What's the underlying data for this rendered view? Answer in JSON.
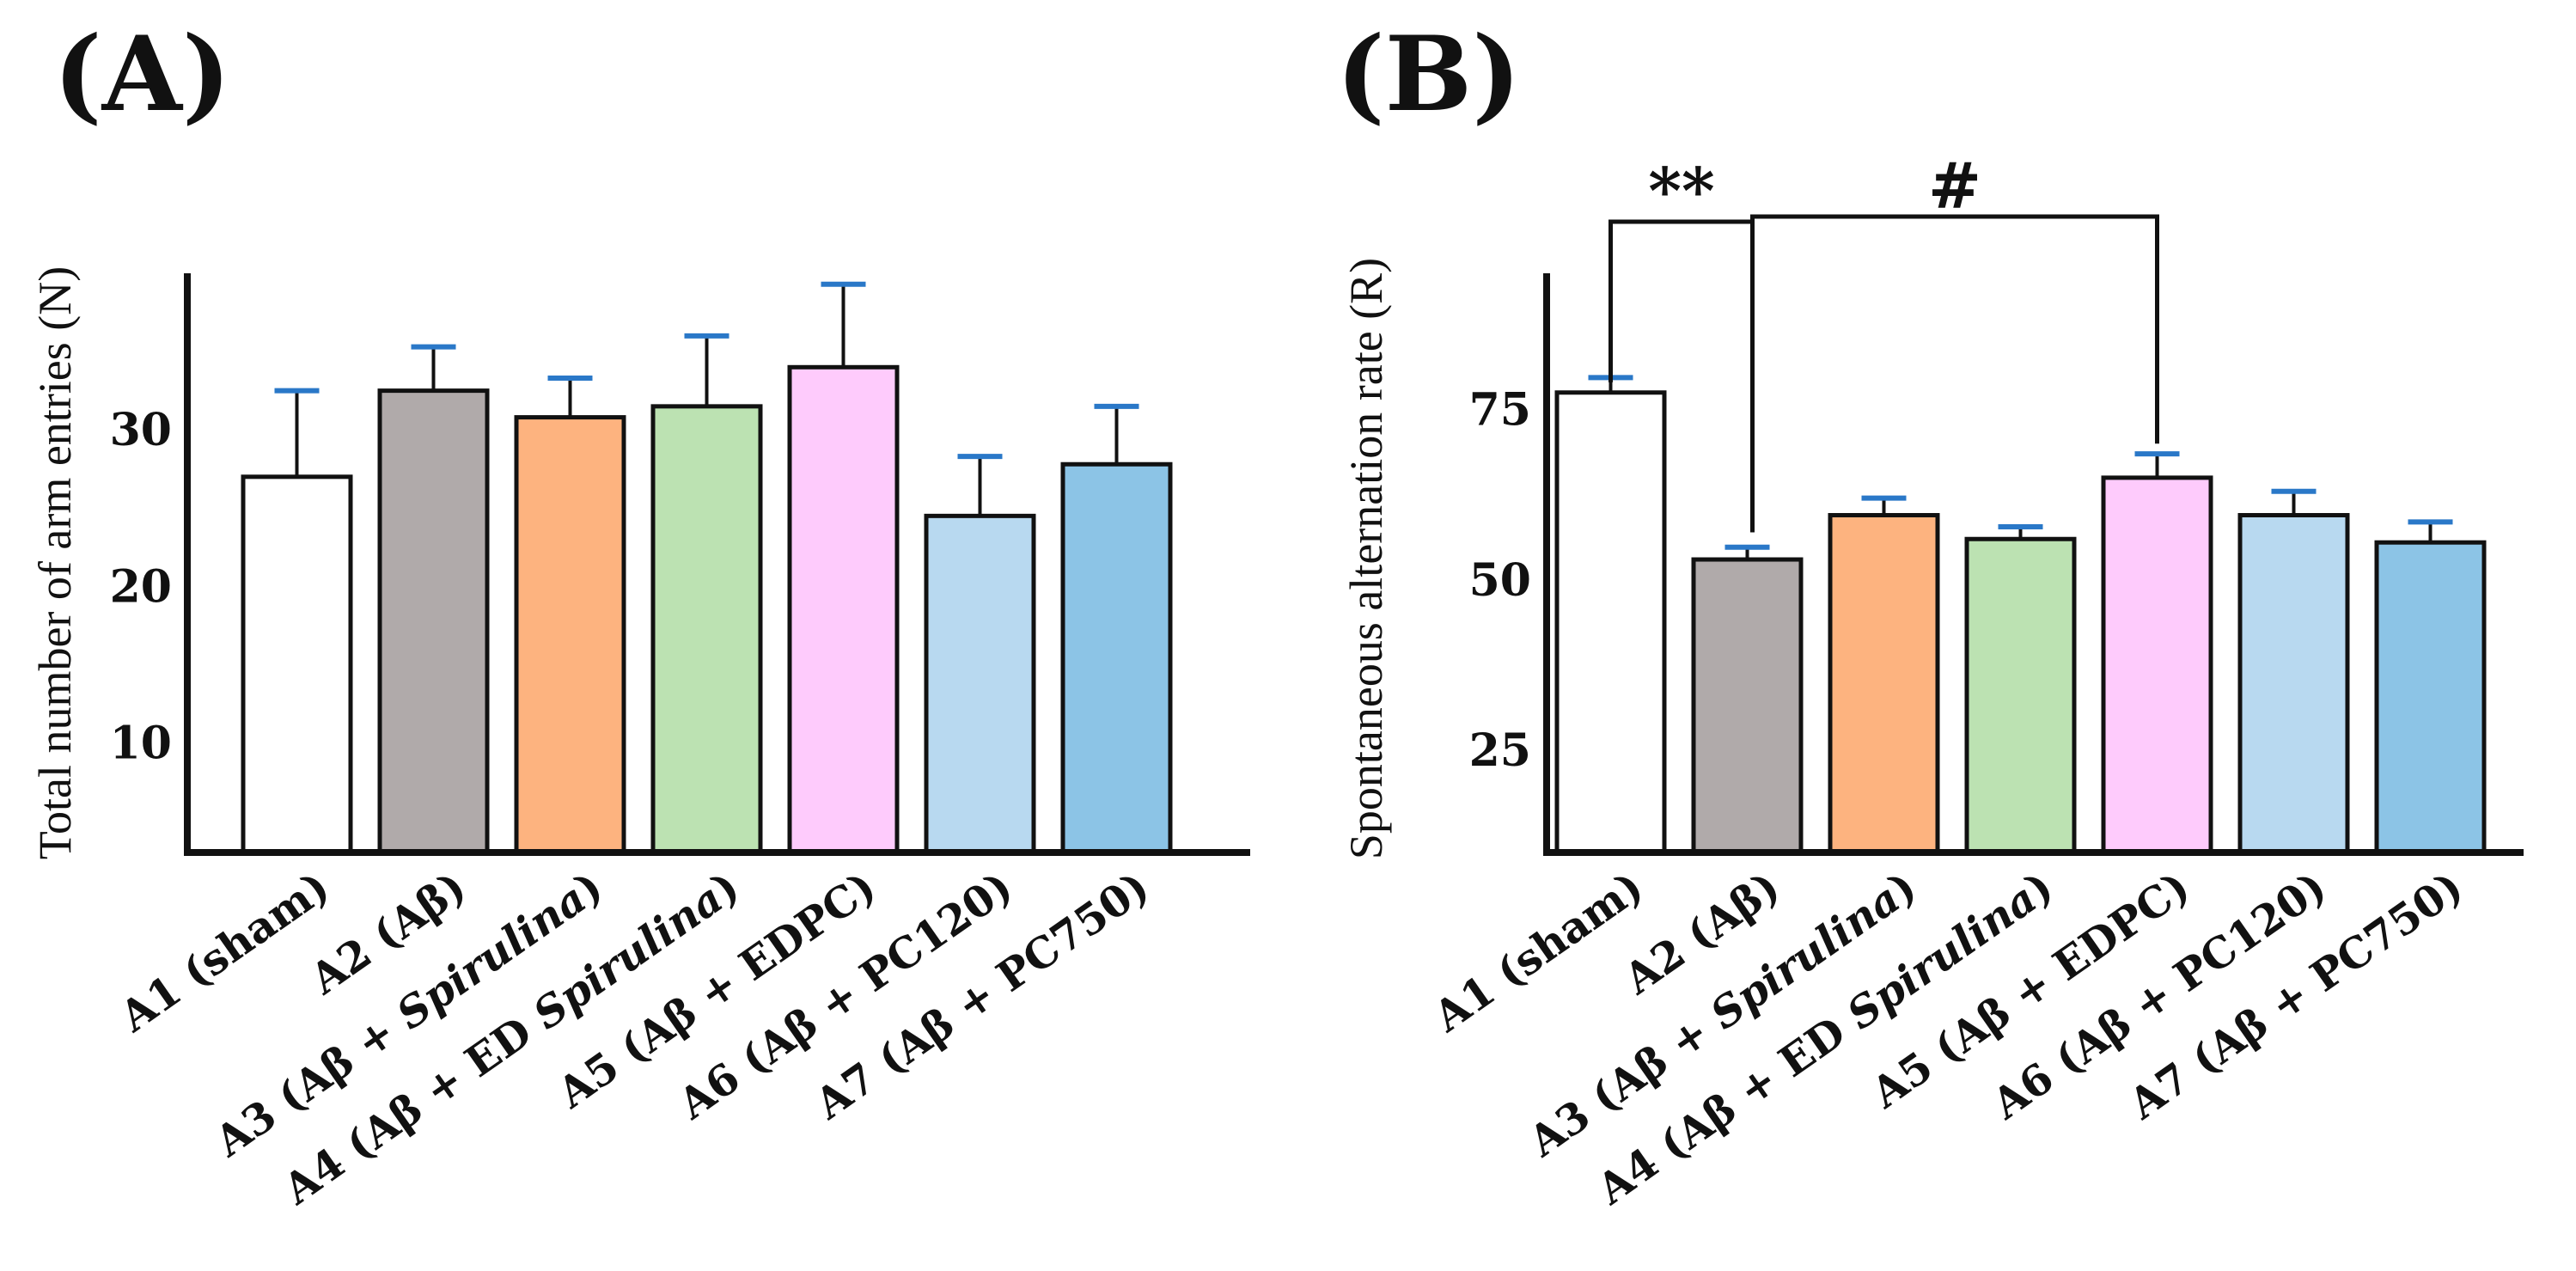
{
  "chart_data": [
    {
      "type": "bar",
      "panel_label": "(A)",
      "ylabel": "Total number of arm entries (N)",
      "categories": [
        "A1 (sham)",
        "A2 (Aβ)",
        "A3 (Aβ + Spirulina)",
        "A4 (Aβ + ED Spirulina)",
        "A5 (Aβ + EDPC)",
        "A6 (Aβ + PC120)",
        "A7 (Aβ + PC750)"
      ],
      "category_parts": [
        [
          {
            "t": "A1 (sham)",
            "i": false
          }
        ],
        [
          {
            "t": "A2 (Aβ)",
            "i": false
          }
        ],
        [
          {
            "t": "A3 (Aβ + ",
            "i": false
          },
          {
            "t": "Spirulina",
            "i": true
          },
          {
            "t": ")",
            "i": false
          }
        ],
        [
          {
            "t": "A4 (Aβ + ED ",
            "i": false
          },
          {
            "t": "Spirulina",
            "i": true
          },
          {
            "t": ")",
            "i": false
          }
        ],
        [
          {
            "t": "A5 (Aβ + EDPC)",
            "i": false
          }
        ],
        [
          {
            "t": "A6 (Aβ + PC120)",
            "i": false
          }
        ],
        [
          {
            "t": "A7 (Aβ + PC750)",
            "i": false
          }
        ]
      ],
      "values": [
        27,
        32.5,
        30.8,
        31.5,
        34,
        24.5,
        27.8
      ],
      "errors": [
        5.5,
        2.8,
        2.5,
        4.5,
        5.3,
        3.8,
        3.7
      ],
      "colors": [
        "#ffffff",
        "#b0aaaa",
        "#fdb37f",
        "#bce2b2",
        "#fecbfc",
        "#b8d9f0",
        "#8cc4e6"
      ],
      "error_color": "#2a78c8",
      "ylim": [
        3,
        40
      ],
      "yticks": [
        10,
        20,
        30
      ],
      "ytick_labels": [
        "10",
        "20",
        "30"
      ],
      "significance": []
    },
    {
      "type": "bar",
      "panel_label": "(B)",
      "ylabel": "Spontaneous alternation rate (R)",
      "categories": [
        "A1 (sham)",
        "A2 (Aβ)",
        "A3 (Aβ + Spirulina)",
        "A4 (Aβ + ED Spirulina)",
        "A5 (Aβ + EDPC)",
        "A6 (Aβ + PC120)",
        "A7 (Aβ + PC750)"
      ],
      "category_parts": [
        [
          {
            "t": "A1 (sham)",
            "i": false
          }
        ],
        [
          {
            "t": "A2 (Aβ)",
            "i": false
          }
        ],
        [
          {
            "t": "A3 (Aβ + ",
            "i": false
          },
          {
            "t": "Spirulina",
            "i": true
          },
          {
            "t": ")",
            "i": false
          }
        ],
        [
          {
            "t": "A4 (Aβ + ED ",
            "i": false
          },
          {
            "t": "Spirulina",
            "i": true
          },
          {
            "t": ")",
            "i": false
          }
        ],
        [
          {
            "t": "A5 (Aβ + EDPC)",
            "i": false
          }
        ],
        [
          {
            "t": "A6 (Aβ + PC120)",
            "i": false
          }
        ],
        [
          {
            "t": "A7 (Aβ + PC750)",
            "i": false
          }
        ]
      ],
      "values": [
        77.5,
        53,
        59.5,
        56,
        65,
        59.5,
        55.5
      ],
      "errors": [
        2.2,
        1.8,
        2.5,
        1.8,
        3.5,
        3.5,
        3.0
      ],
      "colors": [
        "#ffffff",
        "#b0aaaa",
        "#fdb37f",
        "#bce2b2",
        "#fecbfc",
        "#b8d9f0",
        "#8cc4e6"
      ],
      "error_color": "#2a78c8",
      "ylim": [
        10,
        95
      ],
      "yticks": [
        25,
        50,
        75
      ],
      "ytick_labels": [
        "25",
        "50",
        "75"
      ],
      "significance": [
        {
          "from": 0,
          "to": 1,
          "label": "**",
          "left_end": 79,
          "right_end": 57
        },
        {
          "from": 1,
          "to": 4,
          "label": "#",
          "left_end": 57,
          "right_end": 70
        }
      ]
    }
  ]
}
